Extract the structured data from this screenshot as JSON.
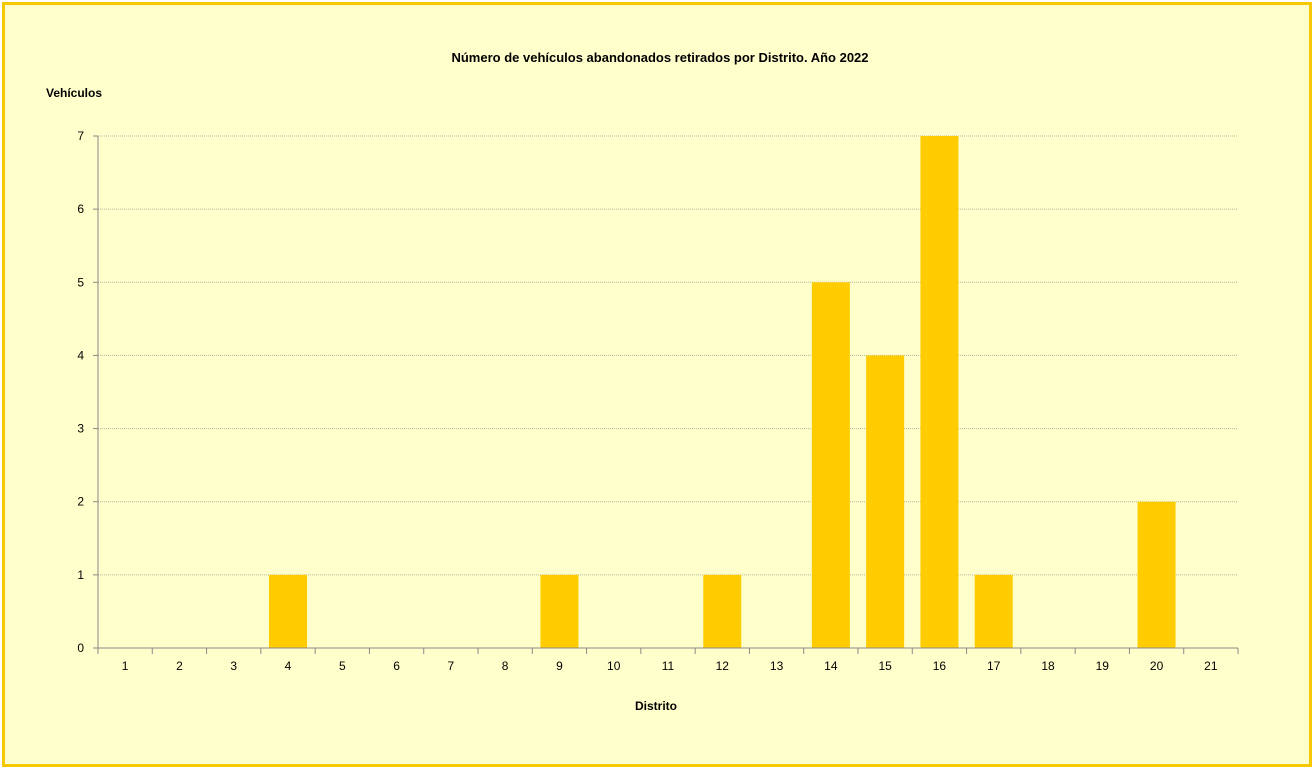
{
  "chart_data": {
    "type": "bar",
    "title": "Número de vehículos abandonados retirados por Distrito. Año 2022",
    "ylabel": "Vehículos",
    "xlabel": "Distrito",
    "categories": [
      "1",
      "2",
      "3",
      "4",
      "5",
      "6",
      "7",
      "8",
      "9",
      "10",
      "11",
      "12",
      "13",
      "14",
      "15",
      "16",
      "17",
      "18",
      "19",
      "20",
      "21"
    ],
    "values": [
      0,
      0,
      0,
      1,
      0,
      0,
      0,
      0,
      1,
      0,
      0,
      1,
      0,
      5,
      4,
      7,
      1,
      0,
      0,
      2,
      0
    ],
    "ylim": [
      0,
      7
    ],
    "yticks": [
      0,
      1,
      2,
      3,
      4,
      5,
      6,
      7
    ],
    "grid": true,
    "legend": "none",
    "bar_color": "#ffcc00",
    "background_color": "#ffffcc",
    "border_color": "#f5c800"
  }
}
